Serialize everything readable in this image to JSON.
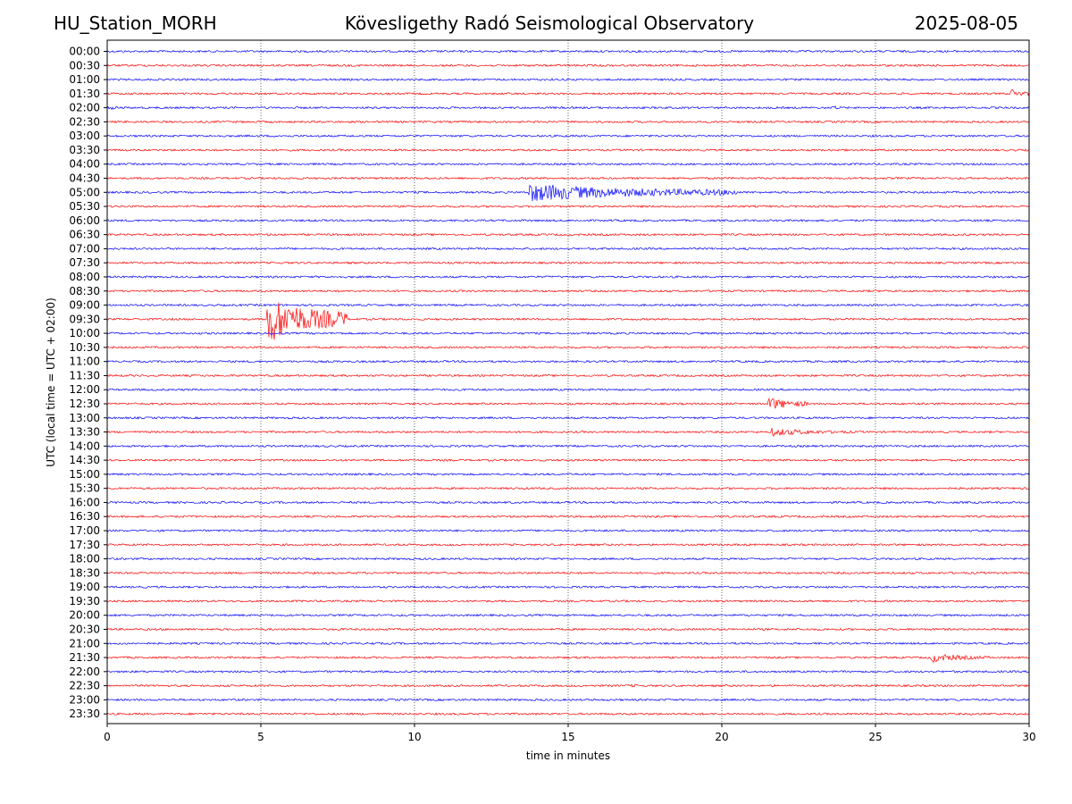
{
  "header": {
    "station": "HU_Station_MORH",
    "title": "Kövesligethy Radó Seismological Observatory",
    "date": "2025-08-05"
  },
  "chart_data": {
    "type": "line",
    "title": "Kövesligethy Radó Seismological Observatory",
    "xlabel": "time in minutes",
    "ylabel": "UTC (local time = UTC + 02:00)",
    "xlim": [
      0,
      30
    ],
    "x_ticks": [
      "0",
      "5",
      "10",
      "15",
      "20",
      "25",
      "30"
    ],
    "grid": "vertical dotted at 5-minute intervals",
    "row_labels": [
      "00:00",
      "00:30",
      "01:00",
      "01:30",
      "02:00",
      "02:30",
      "03:00",
      "03:30",
      "04:00",
      "04:30",
      "05:00",
      "05:30",
      "06:00",
      "06:30",
      "07:00",
      "07:30",
      "08:00",
      "08:30",
      "09:00",
      "09:30",
      "10:00",
      "10:30",
      "11:00",
      "11:30",
      "12:00",
      "12:30",
      "13:00",
      "13:30",
      "14:00",
      "14:30",
      "15:00",
      "15:30",
      "16:00",
      "16:30",
      "17:00",
      "17:30",
      "18:00",
      "18:30",
      "19:00",
      "19:30",
      "20:00",
      "20:30",
      "21:00",
      "21:30",
      "22:00",
      "22:30",
      "23:00",
      "23:30"
    ],
    "trace_colors": [
      "#0000ff",
      "#ff0000"
    ],
    "events": [
      {
        "row": "01:30",
        "start_min": 29.4,
        "end_min": 30.0,
        "amplitude": 7
      },
      {
        "row": "02:00",
        "start_min": 0.0,
        "end_min": 2.5,
        "amplitude": 2
      },
      {
        "row": "02:00",
        "start_min": 23.6,
        "end_min": 23.9,
        "amplitude": 4
      },
      {
        "row": "05:00",
        "start_min": 13.7,
        "end_min": 20.5,
        "amplitude": 11
      },
      {
        "row": "09:30",
        "start_min": 5.2,
        "end_min": 7.8,
        "amplitude": 30
      },
      {
        "row": "12:30",
        "start_min": 21.5,
        "end_min": 22.8,
        "amplitude": 9
      },
      {
        "row": "13:30",
        "start_min": 21.6,
        "end_min": 24.3,
        "amplitude": 5
      },
      {
        "row": "21:00",
        "start_min": 8.6,
        "end_min": 9.2,
        "amplitude": 2
      },
      {
        "row": "21:30",
        "start_min": 26.8,
        "end_min": 28.7,
        "amplitude": 6
      },
      {
        "row": "22:30",
        "start_min": 17.0,
        "end_min": 18.3,
        "amplitude": 2
      }
    ]
  }
}
